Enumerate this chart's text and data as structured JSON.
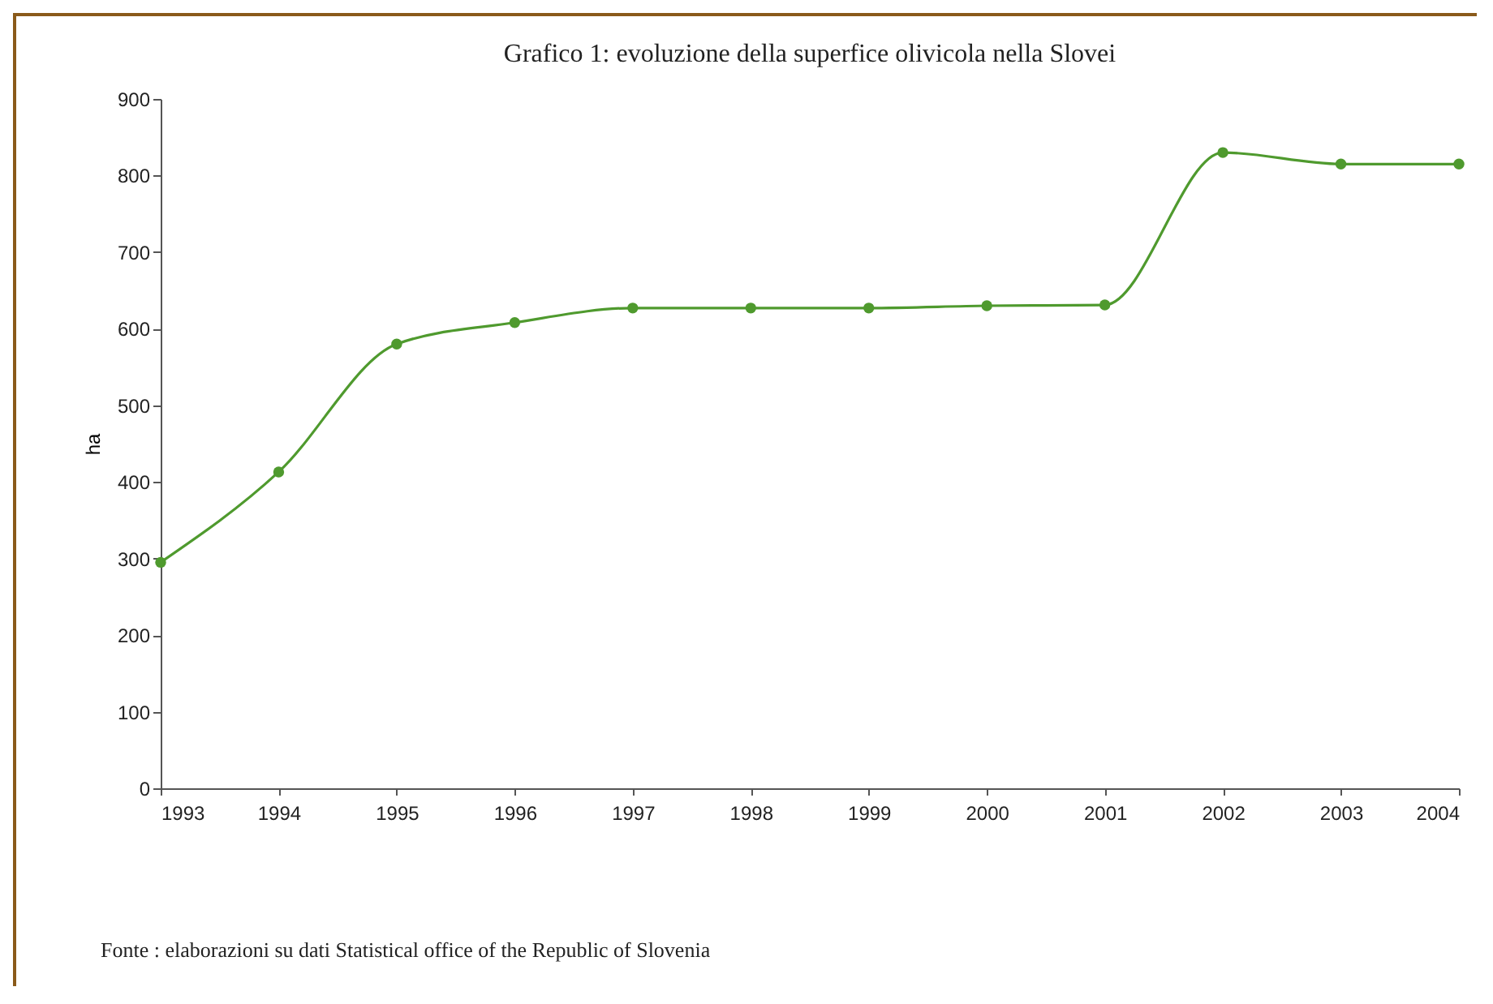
{
  "chart_data": {
    "type": "line",
    "title": "Grafico 1:   evoluzione della superfice olivicola nella Slovei",
    "ylabel": "ha",
    "categories": [
      "1993",
      "1994",
      "1995",
      "1996",
      "1997",
      "1998",
      "1999",
      "2000",
      "2001",
      "2002",
      "2003",
      "2004"
    ],
    "series": [
      {
        "color": "#4f9a2e",
        "values": [
          295,
          413,
          580,
          608,
          627,
          627,
          627,
          630,
          631,
          830,
          815,
          815
        ]
      }
    ],
    "ylim": [
      0,
      900
    ],
    "yticks": [
      0,
      100,
      200,
      300,
      400,
      500,
      600,
      700,
      800,
      900
    ],
    "grid": false,
    "marker": "circle",
    "line_style": "solid",
    "annotations": [
      "Fonte : elaborazioni su dati Statistical office of the Republic of Slovenia"
    ]
  }
}
